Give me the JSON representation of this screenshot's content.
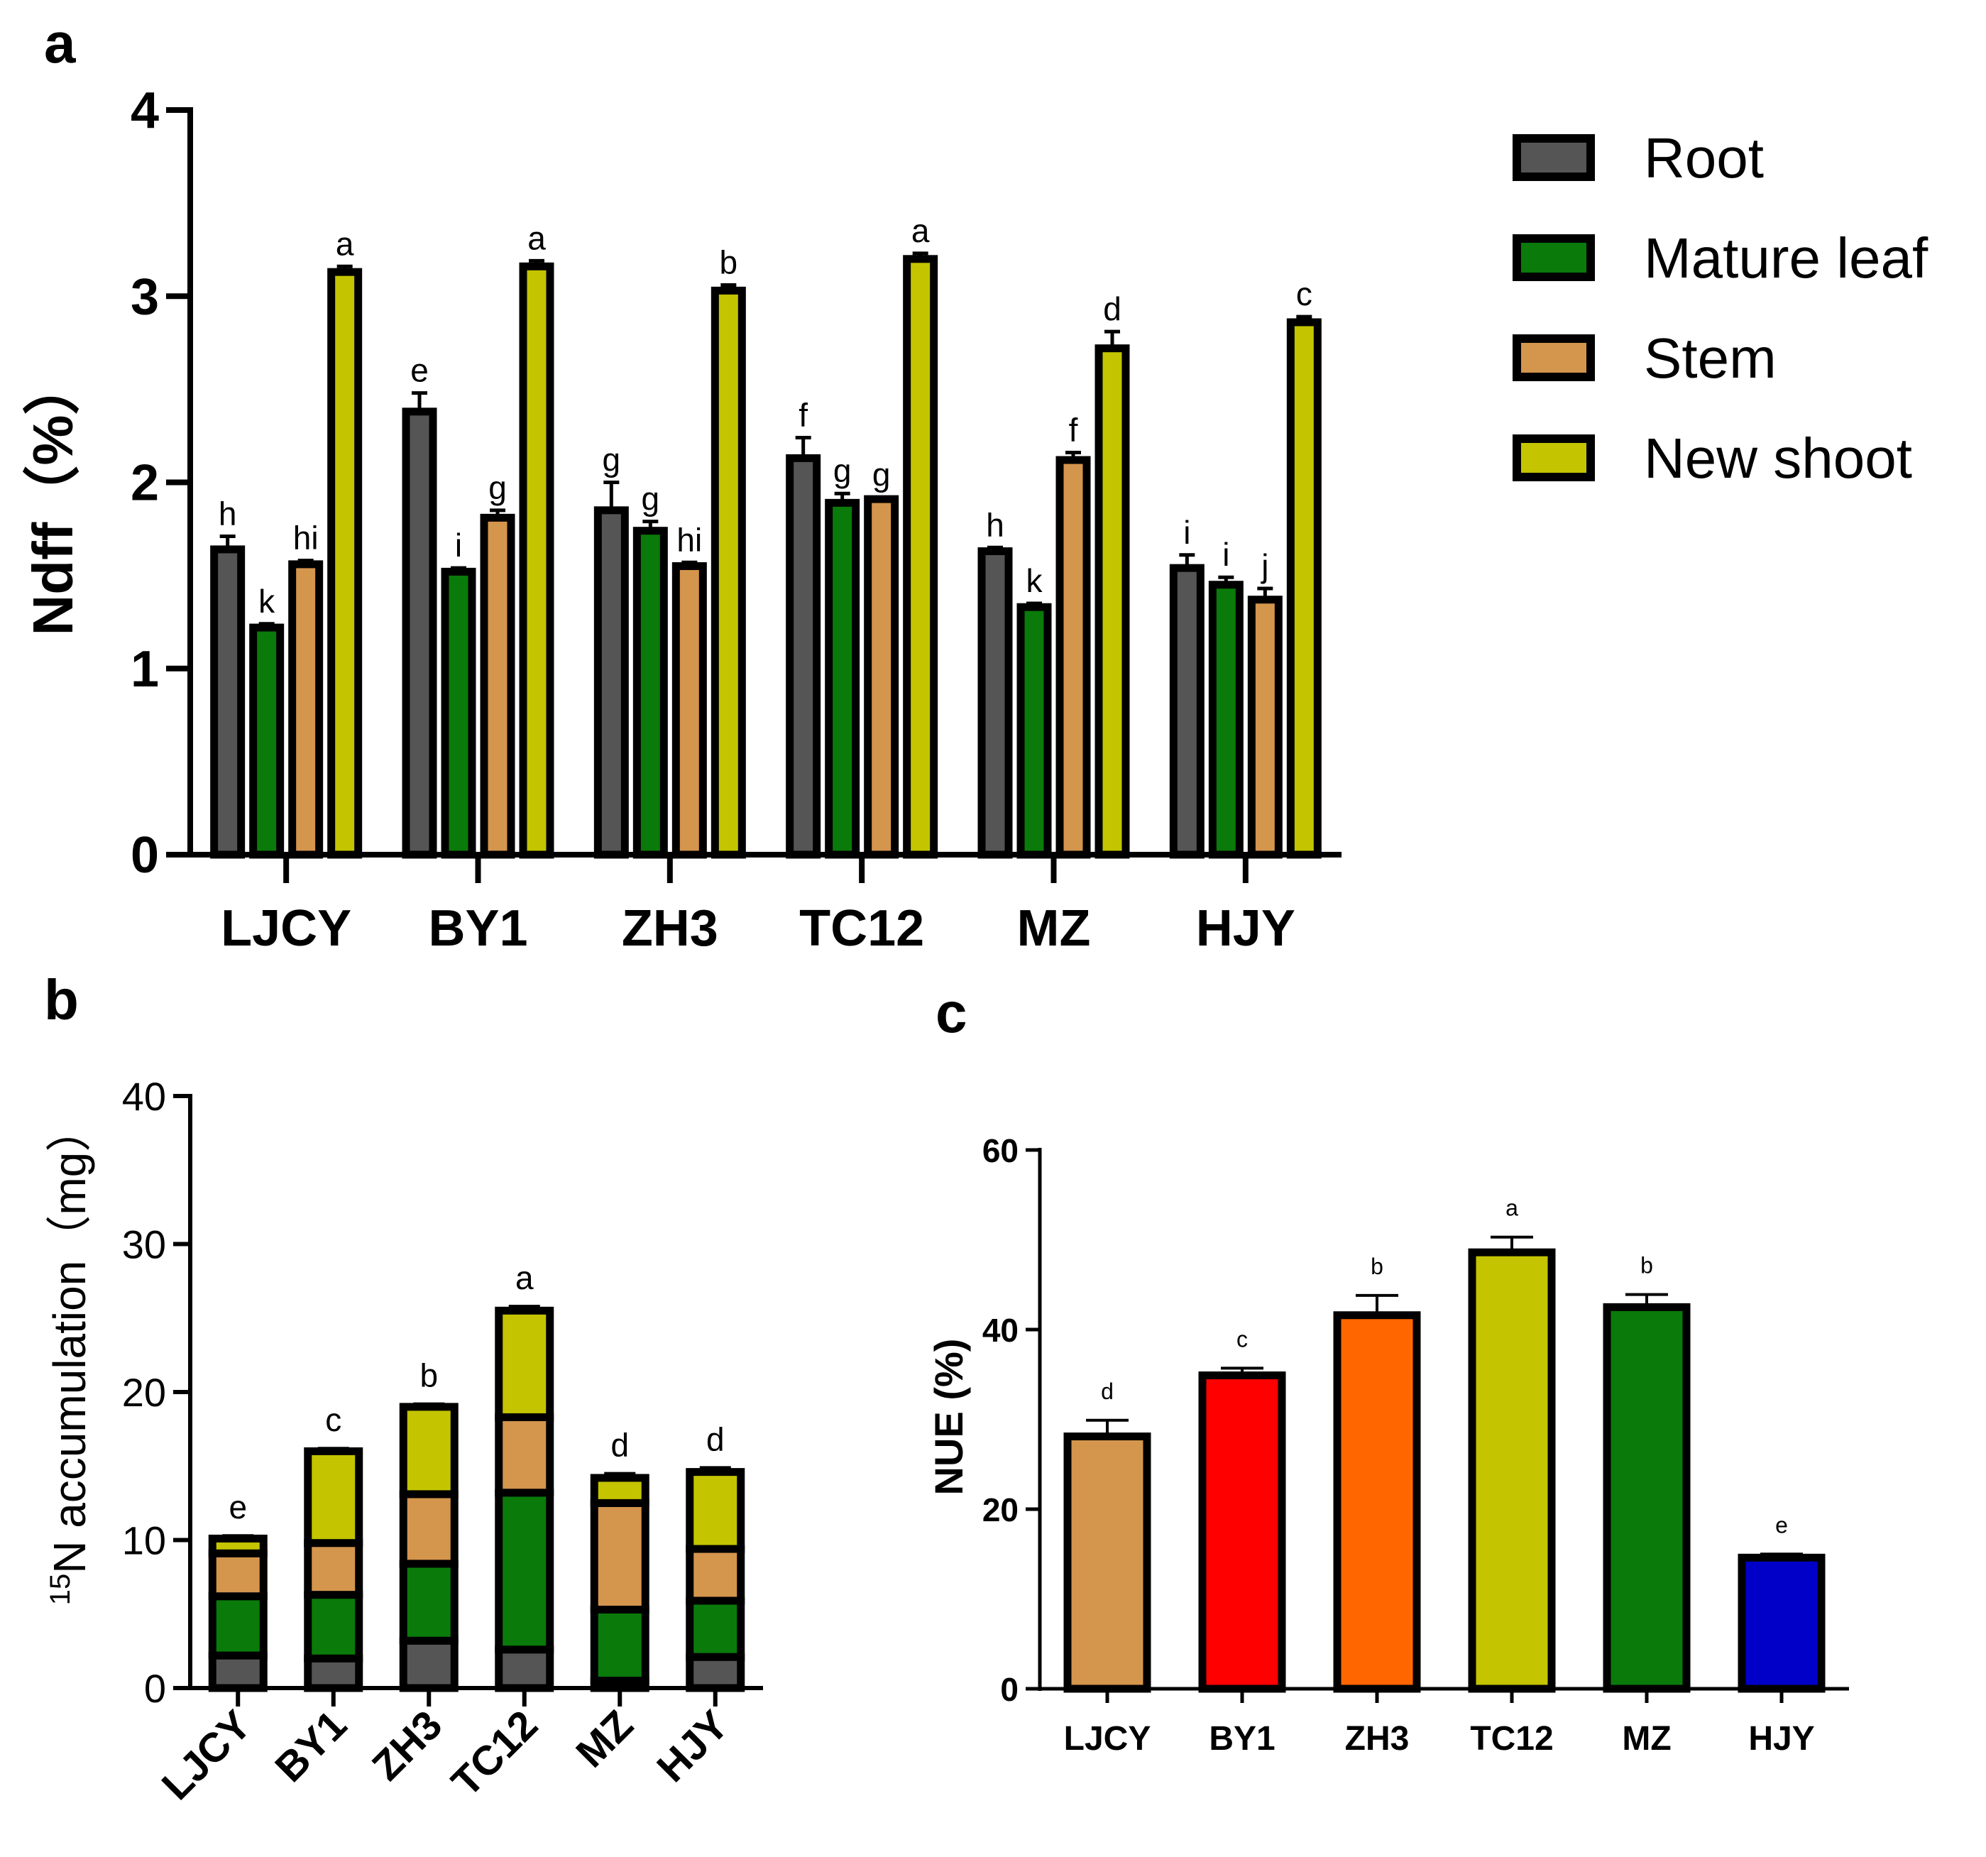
{
  "panels": {
    "a": "a",
    "b": "b",
    "c": "c"
  },
  "chart_data": [
    {
      "panel": "a",
      "type": "bar",
      "ylabel": "Ndff（%）",
      "xlabel": "",
      "ylim": [
        0,
        4
      ],
      "yticks": [
        0,
        1,
        2,
        3,
        4
      ],
      "categories": [
        "LJCY",
        "BY1",
        "ZH3",
        "TC12",
        "MZ",
        "HJY"
      ],
      "legend_position": "right",
      "series": [
        {
          "name": "Root",
          "color": "#555555",
          "values": [
            1.64,
            2.38,
            1.85,
            2.13,
            1.63,
            1.54
          ],
          "errors": [
            0.07,
            0.1,
            0.15,
            0.11,
            0.02,
            0.07
          ],
          "letters": [
            "h",
            "e",
            "g",
            "f",
            "h",
            "i"
          ]
        },
        {
          "name": "Mature leaf",
          "color": "#0a7a0a",
          "values": [
            1.22,
            1.52,
            1.74,
            1.89,
            1.33,
            1.45
          ],
          "errors": [
            0.02,
            0.02,
            0.05,
            0.05,
            0.02,
            0.04
          ],
          "letters": [
            "k",
            "i",
            "g",
            "g",
            "k",
            "i"
          ]
        },
        {
          "name": "Stem",
          "color": "#d4954d",
          "values": [
            1.56,
            1.81,
            1.55,
            1.91,
            2.12,
            1.37
          ],
          "errors": [
            0.02,
            0.04,
            0.02,
            0.01,
            0.04,
            0.06
          ],
          "letters": [
            "hi",
            "g",
            "hi",
            "g",
            "f",
            "j"
          ]
        },
        {
          "name": "New shoot",
          "color": "#c4c400",
          "values": [
            3.13,
            3.16,
            3.03,
            3.2,
            2.72,
            2.86
          ],
          "errors": [
            0.03,
            0.03,
            0.03,
            0.03,
            0.09,
            0.03
          ],
          "letters": [
            "a",
            "a",
            "b",
            "a",
            "d",
            "c"
          ]
        }
      ]
    },
    {
      "panel": "b",
      "type": "bar",
      "stacked": true,
      "ylabel_sup": "15",
      "ylabel": "N accumulation（mg）",
      "xlabel": "",
      "ylim": [
        0,
        40
      ],
      "yticks": [
        0,
        10,
        20,
        30,
        40
      ],
      "categories": [
        "LJCY",
        "BY1",
        "ZH3",
        "TC12",
        "MZ",
        "HJY"
      ],
      "series": [
        {
          "name": "Root",
          "color": "#555555",
          "values": [
            2.2,
            2.0,
            3.2,
            2.6,
            0.5,
            2.1
          ],
          "errors": [
            0.4,
            0.3,
            0.8,
            0.4,
            0.1,
            0.3
          ]
        },
        {
          "name": "Mature leaf",
          "color": "#0a7a0a",
          "values": [
            4.0,
            4.3,
            5.2,
            10.6,
            4.8,
            3.8
          ],
          "errors": [
            0.3,
            0.3,
            0.5,
            1.1,
            0.2,
            0.3
          ]
        },
        {
          "name": "Stem",
          "color": "#d4954d",
          "values": [
            2.9,
            3.5,
            4.7,
            5.1,
            7.2,
            3.5
          ],
          "errors": [
            0.3,
            0.3,
            0.4,
            0.4,
            0.7,
            0.4
          ]
        },
        {
          "name": "New shoot",
          "color": "#c4c400",
          "values": [
            1.0,
            6.2,
            5.9,
            7.2,
            1.7,
            5.2
          ],
          "errors": [
            0.2,
            0.2,
            0.2,
            0.3,
            0.3,
            0.3
          ]
        }
      ],
      "totals": [
        10.1,
        16.0,
        19.0,
        25.5,
        14.2,
        14.6
      ],
      "letters": [
        "e",
        "c",
        "b",
        "a",
        "d",
        "d"
      ]
    },
    {
      "panel": "c",
      "type": "bar",
      "ylabel": "NUE (%)",
      "xlabel": "",
      "ylim": [
        0,
        60
      ],
      "yticks": [
        0,
        20,
        40,
        60
      ],
      "categories": [
        "LJCY",
        "BY1",
        "ZH3",
        "TC12",
        "MZ",
        "HJY"
      ],
      "values": [
        28.1,
        34.9,
        41.6,
        48.6,
        42.5,
        14.6
      ],
      "errors": [
        1.8,
        0.8,
        2.2,
        1.7,
        1.4,
        0.4
      ],
      "letters": [
        "d",
        "c",
        "b",
        "a",
        "b",
        "e"
      ],
      "colors": [
        "#d4954d",
        "#ff0000",
        "#ff6600",
        "#c4c400",
        "#0a7a0a",
        "#0000c8"
      ]
    }
  ]
}
